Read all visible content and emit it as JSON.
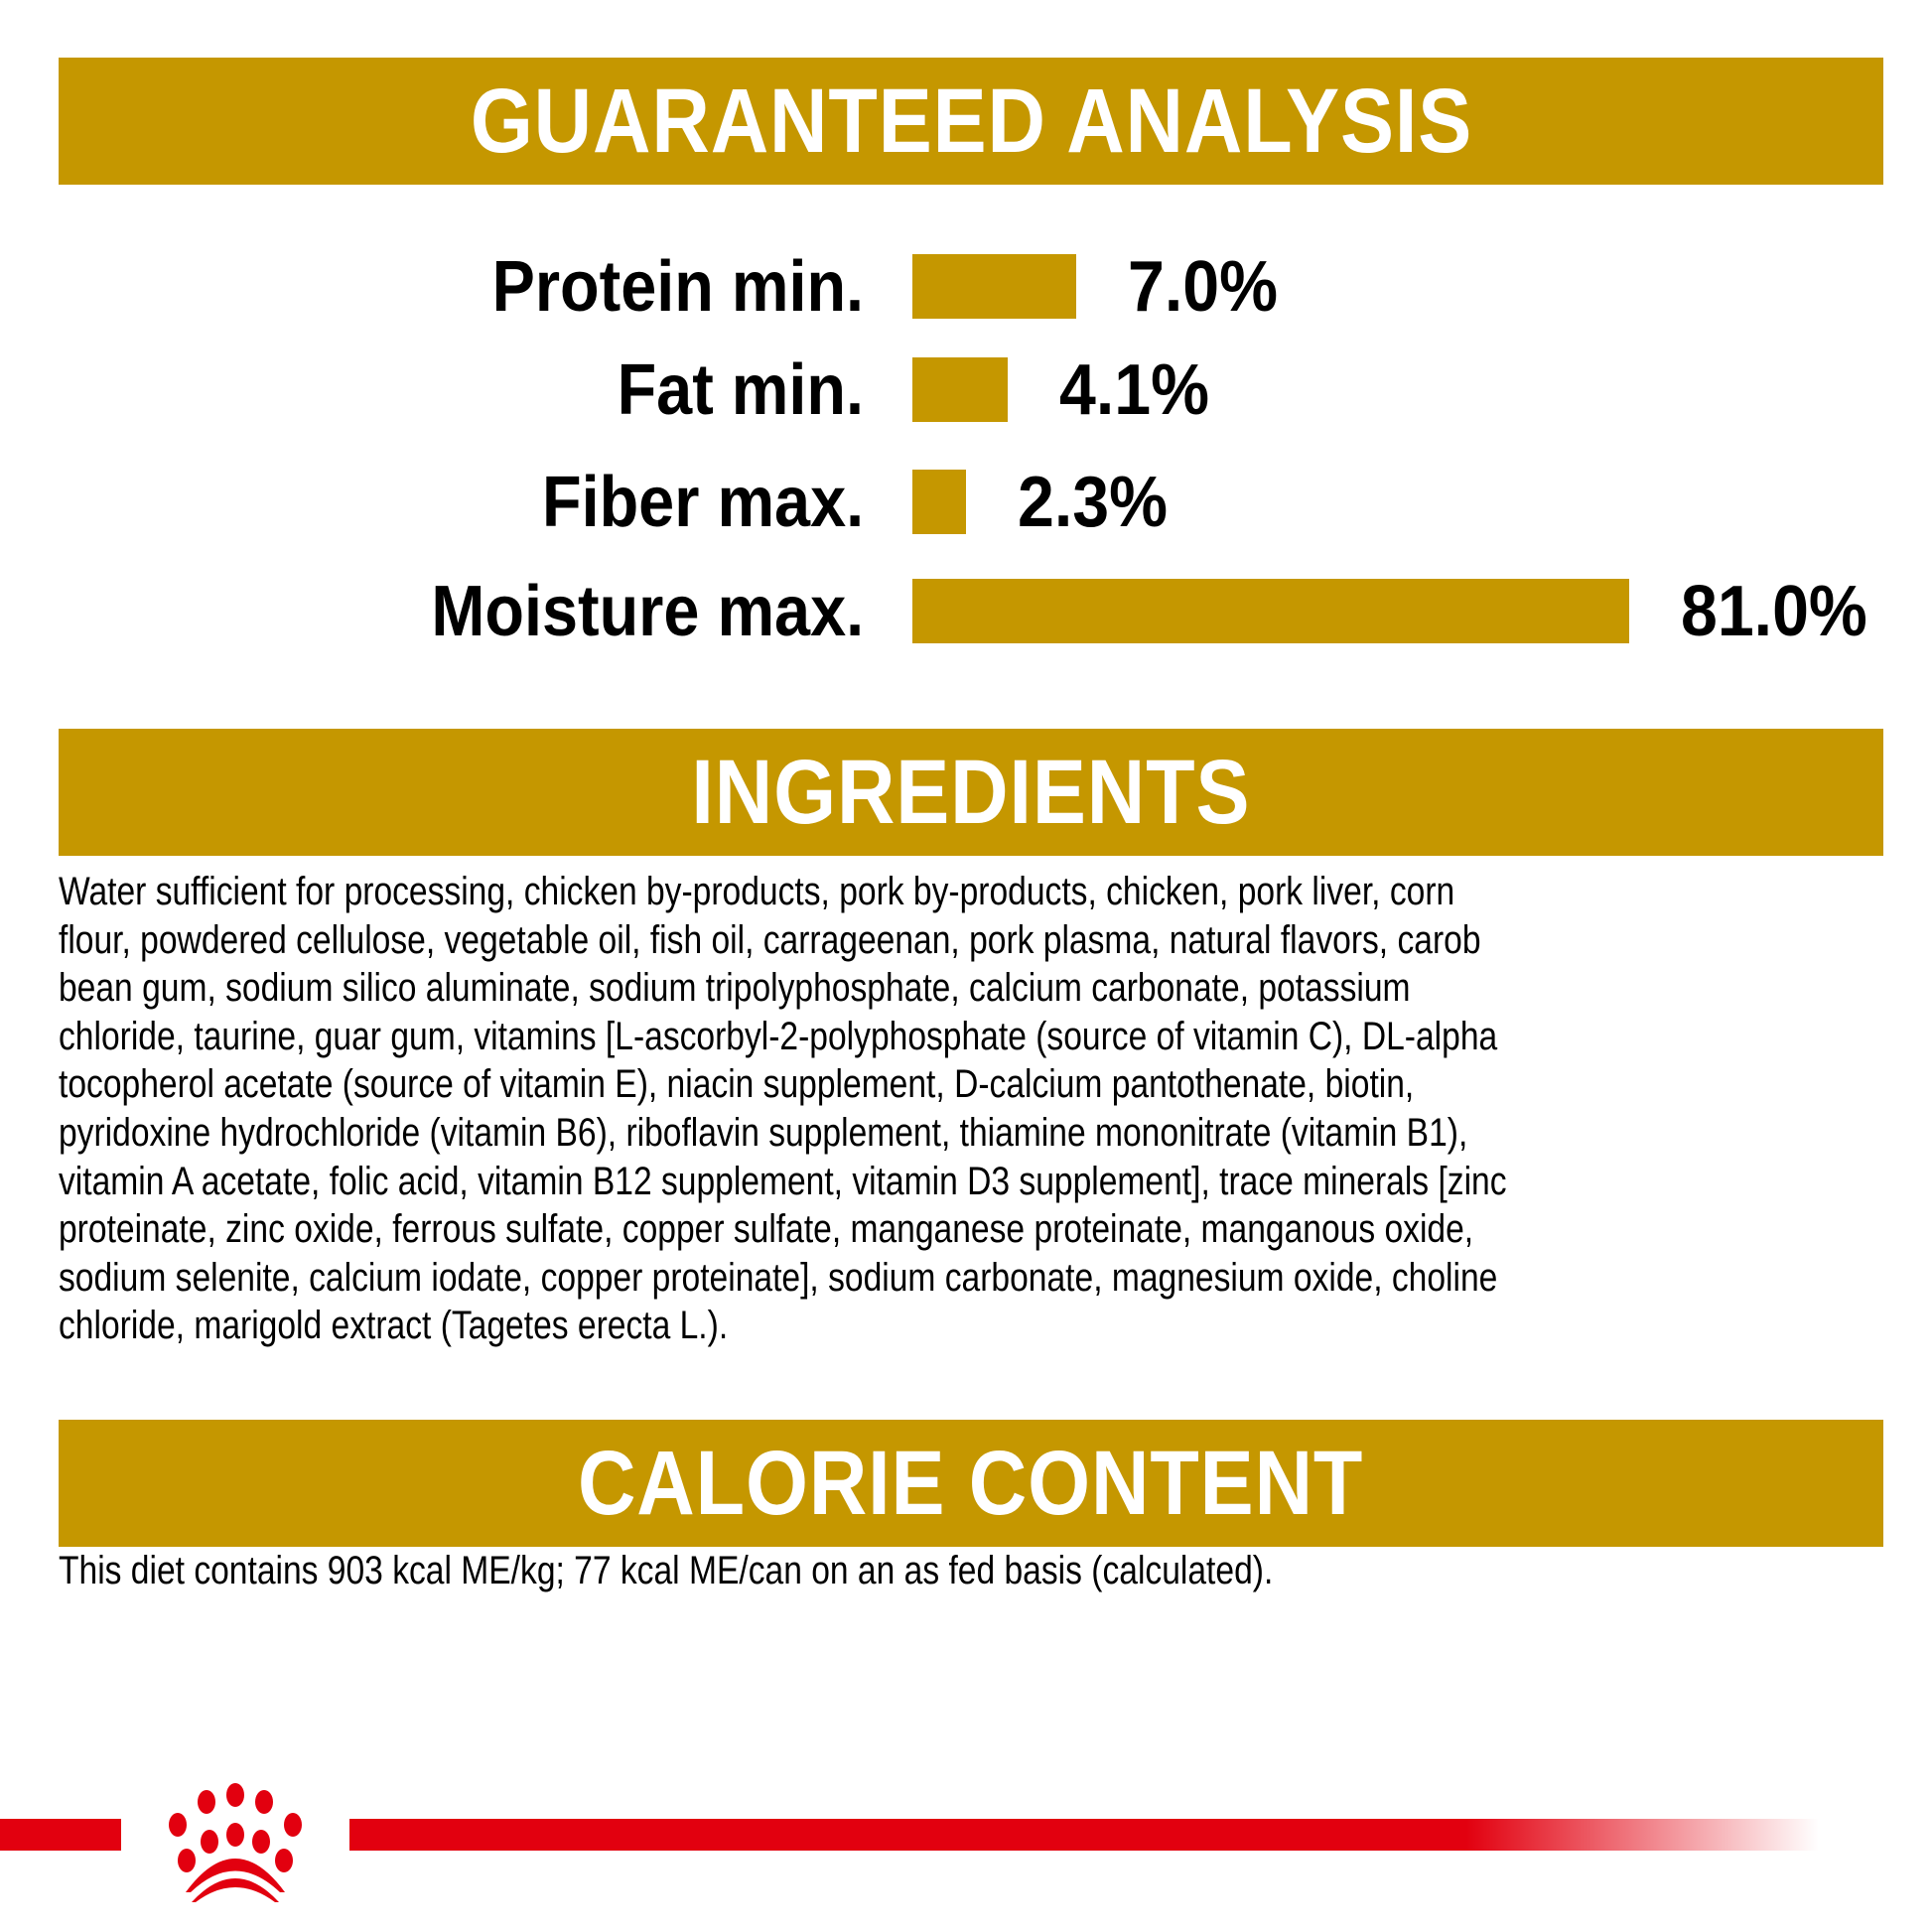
{
  "sections": {
    "analysis_title": "GUARANTEED ANALYSIS",
    "ingredients_title": "INGREDIENTS",
    "calorie_title": "CALORIE CONTENT"
  },
  "chart_data": {
    "type": "bar",
    "orientation": "horizontal",
    "categories": [
      "Protein min.",
      "Fat min.",
      "Fiber max.",
      "Moisture max."
    ],
    "values": [
      7.0,
      4.1,
      2.3,
      81.0
    ],
    "data_labels": [
      "7.0%",
      "4.1%",
      "2.3%",
      "81.0%"
    ],
    "bar_color": "#c59700",
    "grid": false
  },
  "ingredients": {
    "lines": [
      "Water sufficient for processing, chicken by-products, pork by-products, chicken, pork liver, corn",
      "flour, powdered cellulose, vegetable oil, fish oil, carrageenan, pork plasma, natural flavors, carob",
      "bean gum, sodium silico aluminate, sodium tripolyphosphate, calcium carbonate, potassium",
      "chloride, taurine, guar gum, vitamins [L-ascorbyl-2-polyphosphate (source of vitamin C), DL-alpha",
      "tocopherol acetate (source of vitamin E), niacin supplement, D-calcium pantothenate, biotin,",
      "pyridoxine hydrochloride (vitamin B6), riboflavin supplement, thiamine mononitrate (vitamin B1),",
      "vitamin A acetate, folic acid, vitamin B12 supplement, vitamin D3 supplement], trace minerals [zinc",
      "proteinate, zinc oxide, ferrous sulfate, copper sulfate, manganese proteinate, manganous oxide,",
      "sodium selenite, calcium iodate, copper proteinate], sodium carbonate, magnesium oxide, choline",
      "chloride, marigold extract (Tagetes erecta L.)."
    ]
  },
  "calorie": {
    "text": "This diet contains 903 kcal ME/kg; 77 kcal ME/can on an as fed basis (calculated)."
  },
  "brand": {
    "logo": "crown-logo",
    "accent_color": "#e2000f"
  }
}
